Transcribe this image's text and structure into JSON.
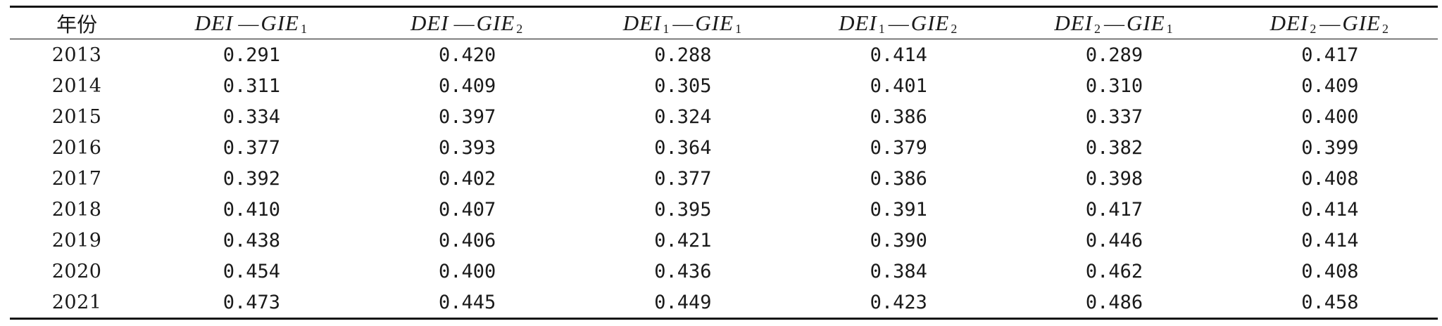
{
  "table": {
    "header": {
      "year": "年份",
      "columns": [
        {
          "a": "DEI",
          "a_sub": "",
          "b": "GIE",
          "b_sub": "1"
        },
        {
          "a": "DEI",
          "a_sub": "",
          "b": "GIE",
          "b_sub": "2"
        },
        {
          "a": "DEI",
          "a_sub": "1",
          "b": "GIE",
          "b_sub": "1"
        },
        {
          "a": "DEI",
          "a_sub": "1",
          "b": "GIE",
          "b_sub": "2"
        },
        {
          "a": "DEI",
          "a_sub": "2",
          "b": "GIE",
          "b_sub": "1"
        },
        {
          "a": "DEI",
          "a_sub": "2",
          "b": "GIE",
          "b_sub": "2"
        }
      ],
      "separator": "—"
    },
    "rows": [
      {
        "year": "2013",
        "values": [
          "0.291",
          "0.420",
          "0.288",
          "0.414",
          "0.289",
          "0.417"
        ]
      },
      {
        "year": "2014",
        "values": [
          "0.311",
          "0.409",
          "0.305",
          "0.401",
          "0.310",
          "0.409"
        ]
      },
      {
        "year": "2015",
        "values": [
          "0.334",
          "0.397",
          "0.324",
          "0.386",
          "0.337",
          "0.400"
        ]
      },
      {
        "year": "2016",
        "values": [
          "0.377",
          "0.393",
          "0.364",
          "0.379",
          "0.382",
          "0.399"
        ]
      },
      {
        "year": "2017",
        "values": [
          "0.392",
          "0.402",
          "0.377",
          "0.386",
          "0.398",
          "0.408"
        ]
      },
      {
        "year": "2018",
        "values": [
          "0.410",
          "0.407",
          "0.395",
          "0.391",
          "0.417",
          "0.414"
        ]
      },
      {
        "year": "2019",
        "values": [
          "0.438",
          "0.406",
          "0.421",
          "0.390",
          "0.446",
          "0.414"
        ]
      },
      {
        "year": "2020",
        "values": [
          "0.454",
          "0.400",
          "0.436",
          "0.384",
          "0.462",
          "0.408"
        ]
      },
      {
        "year": "2021",
        "values": [
          "0.473",
          "0.445",
          "0.449",
          "0.423",
          "0.486",
          "0.458"
        ]
      }
    ]
  }
}
